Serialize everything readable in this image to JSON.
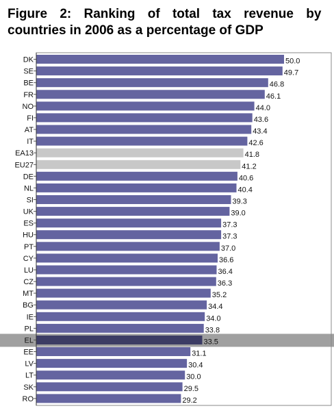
{
  "figure": {
    "title_line1": "Figure 2: Ranking of total tax revenue by",
    "title_line2": "countries in 2006 as a percentage of GDP"
  },
  "colors": {
    "bar_default": "#6464a0",
    "bar_aggregate": "#c8c8c8",
    "bar_highlight": "#3c3c64",
    "highlight_band": "#a0a0a0"
  },
  "chart_data": {
    "type": "bar",
    "orientation": "horizontal",
    "title": "Figure 2: Ranking of total tax revenue by countries in 2006 as a percentage of GDP",
    "xlabel": "",
    "ylabel": "",
    "xlim": [
      0,
      52
    ],
    "grid": false,
    "categories": [
      "DK",
      "SE",
      "BE",
      "FR",
      "NO",
      "FI",
      "AT",
      "IT",
      "EA13",
      "EU27",
      "DE",
      "NL",
      "SI",
      "UK",
      "ES",
      "HU",
      "PT",
      "CY",
      "LU",
      "CZ",
      "MT",
      "BG",
      "IE",
      "PL",
      "EL",
      "EE",
      "LV",
      "LT",
      "SK",
      "RO"
    ],
    "values": [
      50.0,
      49.7,
      46.8,
      46.1,
      44.0,
      43.6,
      43.4,
      42.6,
      41.8,
      41.2,
      40.6,
      40.4,
      39.3,
      39.0,
      37.3,
      37.3,
      37.0,
      36.6,
      36.4,
      36.3,
      35.2,
      34.4,
      34.0,
      33.8,
      33.5,
      31.1,
      30.4,
      30.0,
      29.5,
      29.2
    ],
    "value_labels": [
      "50.0",
      "49.7",
      "46.8",
      "46.1",
      "44.0",
      "43.6",
      "43.4",
      "42.6",
      "41.8",
      "41.2",
      "40.6",
      "40.4",
      "39.3",
      "39.0",
      "37.3",
      "37.3",
      "37.0",
      "36.6",
      "36.4",
      "36.3",
      "35.2",
      "34.4",
      "34.0",
      "33.8",
      "33.5",
      "31.1",
      "30.4",
      "30.0",
      "29.5",
      "29.2"
    ],
    "aggregate_categories": [
      "EA13",
      "EU27"
    ],
    "highlight_category": "EL"
  }
}
